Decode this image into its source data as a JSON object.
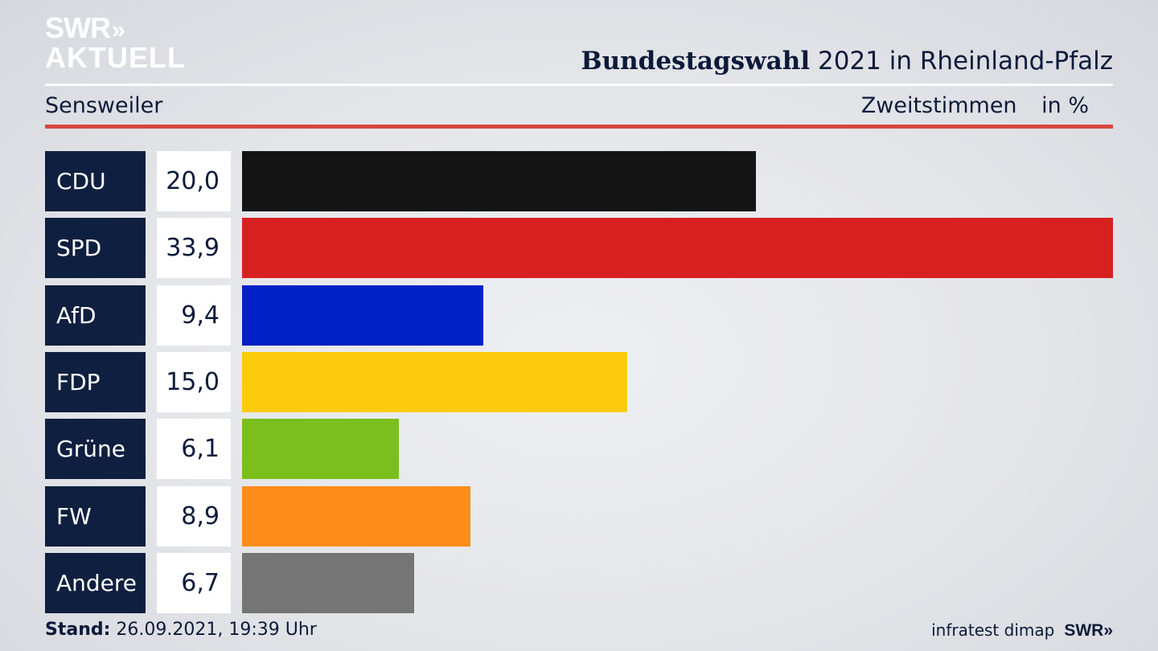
{
  "logo": {
    "line1": "SWR",
    "chevrons": "»",
    "line2": "AKTUELL"
  },
  "header": {
    "title_bold": "Bundestagswahl",
    "title_rest": "2021 in Rheinland-Pfalz",
    "location": "Sensweiler",
    "vote_type": "Zweitstimmen",
    "unit": "in %"
  },
  "chart_data": {
    "type": "bar",
    "orientation": "horizontal",
    "categories": [
      "CDU",
      "SPD",
      "AfD",
      "FDP",
      "Grüne",
      "FW",
      "Andere"
    ],
    "values": [
      20.0,
      33.9,
      9.4,
      15.0,
      6.1,
      8.9,
      6.7
    ],
    "value_labels": [
      "20,0",
      "33,9",
      "9,4",
      "15,0",
      "6,1",
      "8,9",
      "6,7"
    ],
    "colors": [
      "#141414",
      "#d72020",
      "#0021c8",
      "#fdcb0c",
      "#7abf1c",
      "#fd8c19",
      "#757575"
    ],
    "grid": false,
    "legend": "none"
  },
  "footer": {
    "stand_label": "Stand:",
    "stand_value": "26.09.2021, 19:39 Uhr",
    "source": "infratest dimap",
    "brand": "SWR",
    "brand_chevrons": "»"
  }
}
